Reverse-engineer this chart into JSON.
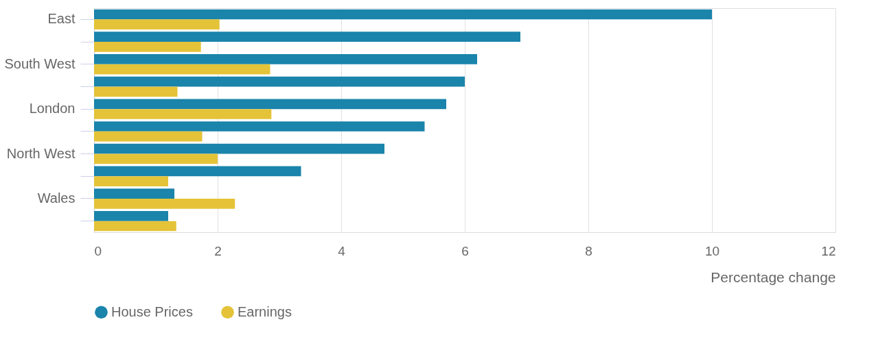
{
  "chart_data": {
    "type": "bar",
    "orientation": "horizontal",
    "categories": [
      "East",
      null,
      "South West",
      null,
      "London",
      null,
      "North West",
      null,
      "Wales",
      null
    ],
    "series": [
      {
        "name": "House Prices",
        "color": "#1a84ab",
        "values": [
          10.0,
          6.9,
          6.2,
          6.0,
          5.7,
          5.35,
          4.7,
          3.35,
          1.3,
          1.2
        ]
      },
      {
        "name": "Earnings",
        "color": "#e4c338",
        "values": [
          2.03,
          1.73,
          2.85,
          1.35,
          2.87,
          1.75,
          2.0,
          1.2,
          2.28,
          1.33
        ]
      }
    ],
    "xlabel": "Percentage change",
    "xlim": [
      0,
      12
    ],
    "xticks": [
      0,
      2,
      4,
      6,
      8,
      10,
      12
    ],
    "grid": "x",
    "legend": "bottom left"
  }
}
